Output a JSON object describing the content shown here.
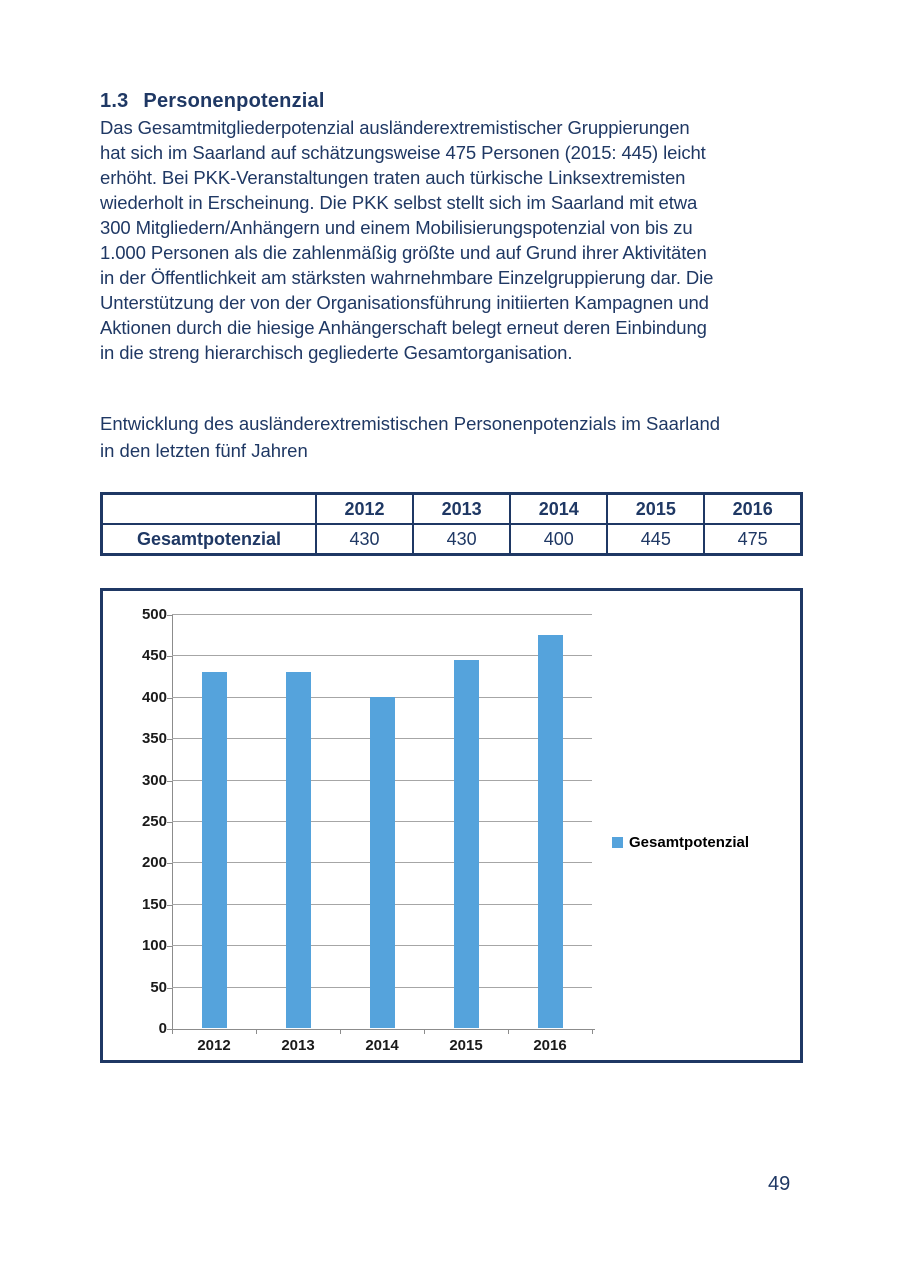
{
  "page": {
    "number": "49"
  },
  "section": {
    "number": "1.3",
    "title": "Personenpotenzial",
    "body_lines": [
      "Das Gesamtmitgliederpotenzial ausländerextremistischer Gruppierungen",
      "hat sich im Saarland auf schätzungsweise 475 Personen (2015: 445) leicht",
      "erhöht. Bei PKK-Veranstaltungen traten auch türkische Linksextremisten",
      "wiederholt in Erscheinung. Die PKK selbst stellt sich im Saarland mit etwa",
      "300 Mitgliedern/Anhängern und einem Mobilisierungspotenzial von bis zu",
      "1.000 Personen als die zahlenmäßig größte und auf Grund ihrer Aktivitäten",
      "in der Öffentlichkeit am stärksten wahrnehmbare Einzelgruppierung dar. Die",
      "Unterstützung der von der Organisationsführung initiierten Kampagnen und",
      "Aktionen durch die hiesige Anhängerschaft belegt erneut deren Einbindung",
      "in die streng hierarchisch gegliederte Gesamtorganisation."
    ],
    "caption_lines": [
      "Entwicklung des ausländerextremistischen Personenpotenzials im Saarland",
      "in den letzten fünf Jahren"
    ]
  },
  "table": {
    "headers": [
      "",
      "2012",
      "2013",
      "2014",
      "2015",
      "2016"
    ],
    "rows": [
      {
        "label": "Gesamtpotenzial",
        "values": [
          "430",
          "430",
          "400",
          "445",
          "475"
        ]
      }
    ]
  },
  "chart_data": {
    "type": "bar",
    "categories": [
      "2012",
      "2013",
      "2014",
      "2015",
      "2016"
    ],
    "series": [
      {
        "name": "Gesamtpotenzial",
        "values": [
          430,
          430,
          400,
          445,
          475
        ]
      }
    ],
    "title": "",
    "xlabel": "",
    "ylabel": "",
    "ylim": [
      0,
      500
    ],
    "ytick_step": 50,
    "grid": true,
    "legend_position": "right",
    "bar_color": "#55A3DC"
  },
  "colors": {
    "text_navy": "#1F3864",
    "border_navy": "#1F3864",
    "bar_blue": "#55A3DC",
    "grid_gray": "#A6A6A6",
    "axis_gray": "#8C8C8C",
    "tick_label": "#1A1A1A"
  }
}
